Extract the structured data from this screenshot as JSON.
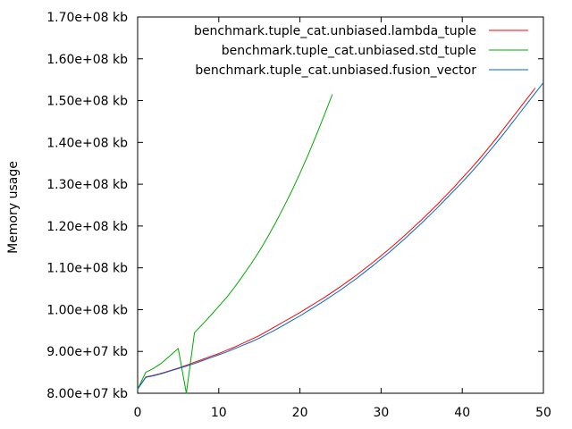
{
  "chart_data": {
    "type": "line",
    "title": "",
    "xlabel": "",
    "ylabel": "Memory usage",
    "xlim": [
      0,
      50
    ],
    "ylim": [
      80000000,
      170000000
    ],
    "x_ticks": [
      0,
      10,
      20,
      30,
      40,
      50
    ],
    "y_ticks": [
      80000000,
      90000000,
      100000000,
      110000000,
      120000000,
      130000000,
      140000000,
      150000000,
      160000000,
      170000000
    ],
    "y_tick_labels": [
      "8.00e+07 kb",
      "9.00e+07 kb",
      "1.00e+08 kb",
      "1.10e+08 kb",
      "1.20e+08 kb",
      "1.30e+08 kb",
      "1.40e+08 kb",
      "1.50e+08 kb",
      "1.60e+08 kb",
      "1.70e+08 kb"
    ],
    "grid": false,
    "legend_position": "top-right",
    "series": [
      {
        "name": "benchmark.tuple_cat.unbiased.lambda_tuple",
        "color": "#ff0000",
        "x": [
          0,
          1,
          2,
          3,
          4,
          5,
          6,
          7,
          8,
          9,
          10,
          11,
          12,
          13,
          14,
          15,
          16,
          17,
          18,
          19,
          20,
          21,
          22,
          23,
          24,
          25,
          26,
          27,
          28,
          29,
          30,
          31,
          32,
          33,
          34,
          35,
          36,
          37,
          38,
          39,
          40,
          41,
          42,
          43,
          44,
          45,
          46,
          47,
          48,
          49
        ],
        "y": [
          81000000,
          83900000,
          84300000,
          84800000,
          85400000,
          86000000,
          86700000,
          87400000,
          88100000,
          88800000,
          89500000,
          90300000,
          91100000,
          92000000,
          92900000,
          93800000,
          94900000,
          96000000,
          97100000,
          98200000,
          99300000,
          100500000,
          101700000,
          102900000,
          104200000,
          105500000,
          106900000,
          108300000,
          109800000,
          111300000,
          112900000,
          114500000,
          116200000,
          117900000,
          119700000,
          121500000,
          123400000,
          125300000,
          127300000,
          129300000,
          131500000,
          133600000,
          135800000,
          138100000,
          140500000,
          143000000,
          145500000,
          148000000,
          150500000,
          153000000
        ]
      },
      {
        "name": "benchmark.tuple_cat.unbiased.std_tuple",
        "color": "#00aa00",
        "x": [
          0,
          1,
          2,
          3,
          4,
          5,
          6,
          7,
          8,
          9,
          10,
          11,
          12,
          13,
          14,
          15,
          16,
          17,
          18,
          19,
          20,
          21,
          22,
          23,
          24
        ],
        "y": [
          81000000,
          85000000,
          86000000,
          87300000,
          89000000,
          90700000,
          80000000,
          94500000,
          96500000,
          98600000,
          100800000,
          103000000,
          105500000,
          108200000,
          111000000,
          114000000,
          117300000,
          120800000,
          124500000,
          128400000,
          132600000,
          137000000,
          141700000,
          146500000,
          151500000
        ]
      },
      {
        "name": "benchmark.tuple_cat.unbiased.fusion_vector",
        "color": "#0066cc",
        "x": [
          0,
          1,
          2,
          3,
          4,
          5,
          6,
          7,
          8,
          9,
          10,
          11,
          12,
          13,
          14,
          15,
          16,
          17,
          18,
          19,
          20,
          21,
          22,
          23,
          24,
          25,
          26,
          27,
          28,
          29,
          30,
          31,
          32,
          33,
          34,
          35,
          36,
          37,
          38,
          39,
          40,
          41,
          42,
          43,
          44,
          45,
          46,
          47,
          48,
          49,
          50
        ],
        "y": [
          81000000,
          83800000,
          84200000,
          84700000,
          85300000,
          85900000,
          86500000,
          87100000,
          87800000,
          88500000,
          89200000,
          89900000,
          90700000,
          91500000,
          92300000,
          93200000,
          94200000,
          95200000,
          96300000,
          97400000,
          98500000,
          99700000,
          100900000,
          102100000,
          103400000,
          104700000,
          106100000,
          107500000,
          109000000,
          110500000,
          112100000,
          113700000,
          115400000,
          117100000,
          118900000,
          120700000,
          122600000,
          124500000,
          126500000,
          128500000,
          130500000,
          132600000,
          134800000,
          137100000,
          139400000,
          141800000,
          144300000,
          146800000,
          149300000,
          151800000,
          154300000
        ]
      }
    ]
  }
}
